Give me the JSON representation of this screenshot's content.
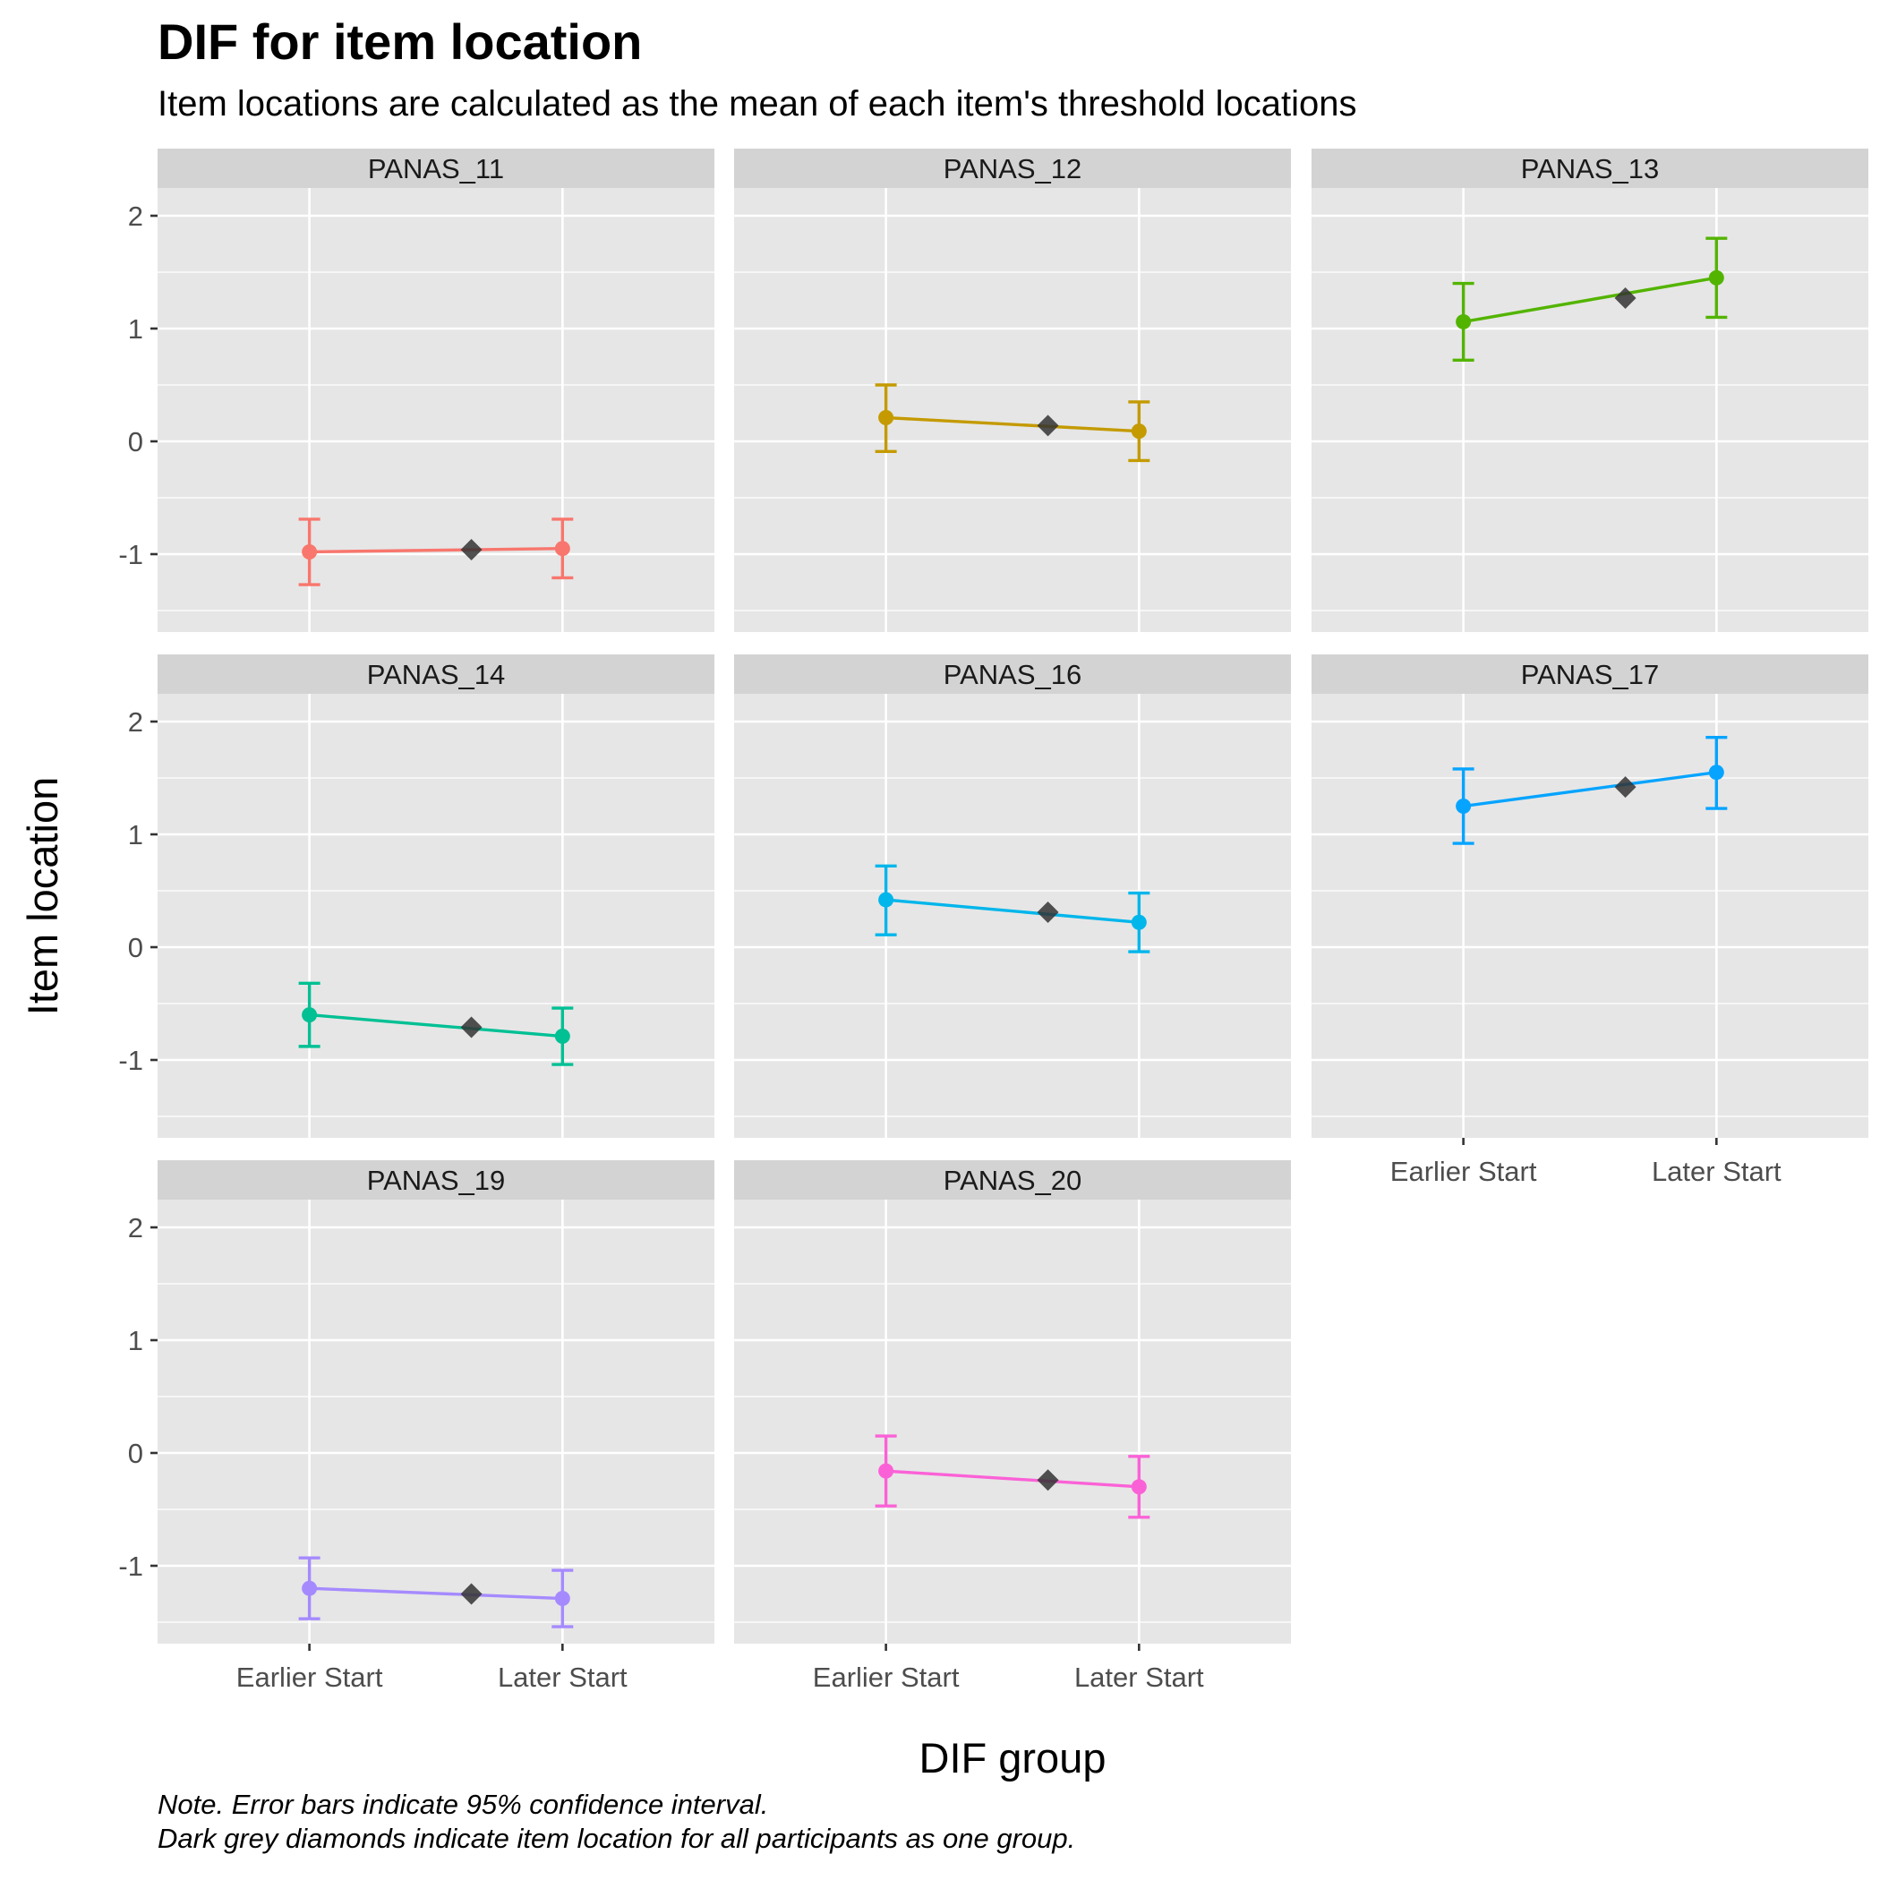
{
  "chart_data": {
    "type": "line",
    "title": "DIF for item location",
    "subtitle": "Item locations are calculated as the mean of each item's threshold locations",
    "xlabel": "DIF group",
    "ylabel": "Item location",
    "categories": [
      "Earlier Start",
      "Later Start"
    ],
    "ylim": [
      -1.7,
      2.0
    ],
    "yticks": [
      2,
      1,
      0,
      -1
    ],
    "ytick_labels": [
      "2",
      "1",
      "0",
      "-1"
    ],
    "caption": [
      "Note. Error bars indicate 95% confidence interval.",
      "Dark grey diamonds indicate item location for all participants as one group."
    ],
    "diamond_color": "#333333",
    "panels": [
      {
        "name": "PANAS_11",
        "color": "#F8766D",
        "values": [
          -0.98,
          -0.95
        ],
        "lower": [
          -1.27,
          -1.21
        ],
        "upper": [
          -0.69,
          -0.69
        ],
        "overall": -0.96
      },
      {
        "name": "PANAS_12",
        "color": "#C49A00",
        "values": [
          0.21,
          0.09
        ],
        "lower": [
          -0.09,
          -0.17
        ],
        "upper": [
          0.5,
          0.35
        ],
        "overall": 0.14
      },
      {
        "name": "PANAS_13",
        "color": "#53B400",
        "values": [
          1.06,
          1.45
        ],
        "lower": [
          0.72,
          1.1
        ],
        "upper": [
          1.4,
          1.8
        ],
        "overall": 1.27
      },
      {
        "name": "PANAS_14",
        "color": "#00C094",
        "values": [
          -0.6,
          -0.79
        ],
        "lower": [
          -0.88,
          -1.04
        ],
        "upper": [
          -0.32,
          -0.54
        ],
        "overall": -0.71
      },
      {
        "name": "PANAS_16",
        "color": "#00B6EB",
        "values": [
          0.42,
          0.22
        ],
        "lower": [
          0.11,
          -0.04
        ],
        "upper": [
          0.72,
          0.48
        ],
        "overall": 0.31
      },
      {
        "name": "PANAS_17",
        "color": "#06A4FF",
        "values": [
          1.25,
          1.55
        ],
        "lower": [
          0.92,
          1.23
        ],
        "upper": [
          1.58,
          1.86
        ],
        "overall": 1.42
      },
      {
        "name": "PANAS_19",
        "color": "#A58AFF",
        "values": [
          -1.2,
          -1.29
        ],
        "lower": [
          -1.47,
          -1.54
        ],
        "upper": [
          -0.93,
          -1.04
        ],
        "overall": -1.25
      },
      {
        "name": "PANAS_20",
        "color": "#FB61D7",
        "values": [
          -0.16,
          -0.3
        ],
        "lower": [
          -0.47,
          -0.57
        ],
        "upper": [
          0.15,
          -0.03
        ],
        "overall": -0.24
      }
    ]
  }
}
